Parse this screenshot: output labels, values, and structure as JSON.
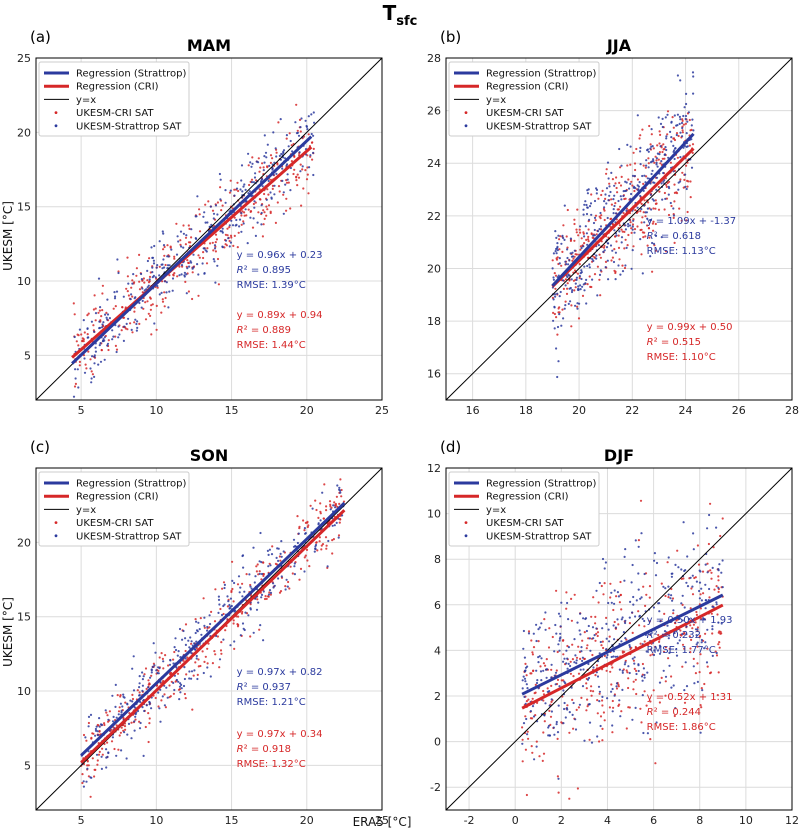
{
  "figure": {
    "supertitle_main": "T",
    "supertitle_sub": "sfc",
    "xlabel": "ERA5 [°C]",
    "ylabel": "UKESM [°C]"
  },
  "colors": {
    "strattrop": "#2b3a9e",
    "cri": "#d62728",
    "identity": "#000000",
    "grid": "#dcdcdc"
  },
  "legend": {
    "items": [
      {
        "label": "Regression (Strattrop)",
        "kind": "line",
        "color": "#2b3a9e"
      },
      {
        "label": "Regression (CRI)",
        "kind": "line",
        "color": "#d62728"
      },
      {
        "label": "y=x",
        "kind": "thin",
        "color": "#000000"
      },
      {
        "label": "UKESM-CRI SAT",
        "kind": "dot",
        "color": "#d62728"
      },
      {
        "label": "UKESM-Strattrop SAT",
        "kind": "dot",
        "color": "#2b3a9e"
      }
    ]
  },
  "chart_data": [
    {
      "type": "scatter",
      "panel": "(a)",
      "title": "MAM",
      "xlim": [
        2,
        25
      ],
      "ylim": [
        2,
        25
      ],
      "xticks": [
        5,
        10,
        15,
        20,
        25
      ],
      "yticks": [
        5,
        10,
        15,
        20,
        25
      ],
      "cloud": {
        "xmin": 4.5,
        "xmax": 20.5,
        "sd": 1.3
      },
      "series": [
        {
          "name": "Regression (Strattrop)",
          "slope": 0.96,
          "intercept": 0.23,
          "x_range": [
            4.4,
            20.3
          ]
        },
        {
          "name": "Regression (CRI)",
          "slope": 0.89,
          "intercept": 0.94,
          "x_range": [
            4.4,
            20.3
          ]
        }
      ],
      "annotations": {
        "strattrop": [
          "y = 0.96x + 0.23",
          "R² = 0.895",
          "RMSE: 1.39°C"
        ],
        "cri": [
          "y = 0.89x + 0.94",
          "R² = 0.889",
          "RMSE: 1.44°C"
        ]
      }
    },
    {
      "type": "scatter",
      "panel": "(b)",
      "title": "JJA",
      "xlim": [
        15,
        28
      ],
      "ylim": [
        15,
        28
      ],
      "xticks": [
        16,
        18,
        20,
        22,
        24,
        26,
        28
      ],
      "yticks": [
        16,
        18,
        20,
        22,
        24,
        26,
        28
      ],
      "cloud": {
        "xmin": 19,
        "xmax": 24.3,
        "sd": 1.1
      },
      "series": [
        {
          "name": "Regression (Strattrop)",
          "slope": 1.09,
          "intercept": -1.37,
          "x_range": [
            19.0,
            24.3
          ]
        },
        {
          "name": "Regression (CRI)",
          "slope": 0.99,
          "intercept": 0.5,
          "x_range": [
            19.0,
            24.3
          ]
        }
      ],
      "annotations": {
        "strattrop": [
          "y = 1.09x + -1.37",
          "R² = 0.618",
          "RMSE: 1.13°C"
        ],
        "cri": [
          "y = 0.99x + 0.50",
          "R² = 0.515",
          "RMSE: 1.10°C"
        ]
      }
    },
    {
      "type": "scatter",
      "panel": "(c)",
      "title": "SON",
      "xlim": [
        2,
        25
      ],
      "ylim": [
        2,
        25
      ],
      "xticks": [
        5,
        10,
        15,
        20,
        25
      ],
      "yticks": [
        5,
        10,
        15,
        20
      ],
      "cloud": {
        "xmin": 5,
        "xmax": 22.5,
        "sd": 1.2
      },
      "series": [
        {
          "name": "Regression (Strattrop)",
          "slope": 0.97,
          "intercept": 0.82,
          "x_range": [
            5.0,
            22.5
          ]
        },
        {
          "name": "Regression (CRI)",
          "slope": 0.97,
          "intercept": 0.34,
          "x_range": [
            5.0,
            22.5
          ]
        }
      ],
      "annotations": {
        "strattrop": [
          "y = 0.97x + 0.82",
          "R² = 0.937",
          "RMSE: 1.21°C"
        ],
        "cri": [
          "y = 0.97x + 0.34",
          "R² = 0.918",
          "RMSE: 1.32°C"
        ]
      }
    },
    {
      "type": "scatter",
      "panel": "(d)",
      "title": "DJF",
      "xlim": [
        -3,
        12
      ],
      "ylim": [
        -3,
        12
      ],
      "xticks": [
        -2,
        0,
        2,
        4,
        6,
        8,
        10,
        12
      ],
      "yticks": [
        -2,
        0,
        2,
        4,
        6,
        8,
        10,
        12
      ],
      "cloud": {
        "xmin": 0.3,
        "xmax": 9,
        "sd": 1.8
      },
      "series": [
        {
          "name": "Regression (Strattrop)",
          "slope": 0.5,
          "intercept": 1.93,
          "x_range": [
            0.3,
            9.0
          ]
        },
        {
          "name": "Regression (CRI)",
          "slope": 0.52,
          "intercept": 1.31,
          "x_range": [
            0.3,
            9.0
          ]
        }
      ],
      "annotations": {
        "strattrop": [
          "y = 0.50x + 1.93",
          "R² = 0.232",
          "RMSE: 1.77°C"
        ],
        "cri": [
          "y = 0.52x + 1.31",
          "R² = 0.244",
          "RMSE: 1.86°C"
        ]
      }
    }
  ]
}
